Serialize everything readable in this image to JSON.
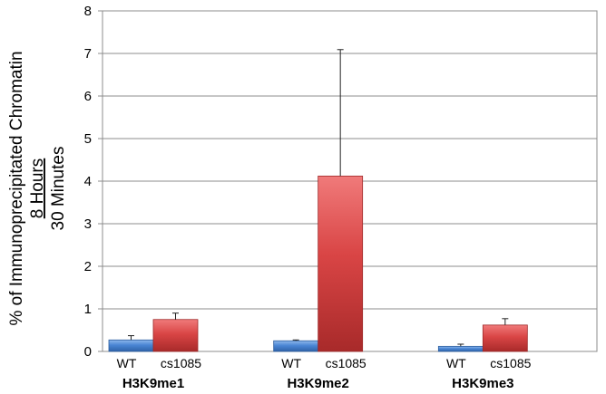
{
  "chart_data": {
    "type": "bar",
    "ylim": [
      0,
      8
    ],
    "yticks": [
      "0",
      "1",
      "2",
      "3",
      "4",
      "5",
      "6",
      "7",
      "8"
    ],
    "ylabel": {
      "line1": "% of Immunoprecipitated Chromatin",
      "line2": "8 Hours",
      "line3": "30 Minutes"
    },
    "grid": true,
    "groups": [
      {
        "name": "H3K9me1",
        "bars": [
          {
            "label": "WT",
            "value": 0.27,
            "error": 0.1,
            "color": "#4a86d4"
          },
          {
            "label": "cs1085",
            "value": 0.75,
            "error": 0.15,
            "color": "#d94545"
          }
        ]
      },
      {
        "name": "H3K9me2",
        "bars": [
          {
            "label": "WT",
            "value": 0.25,
            "error": 0.02,
            "color": "#4a86d4"
          },
          {
            "label": "cs1085",
            "value": 4.12,
            "error": 2.97,
            "color": "#d94545"
          }
        ]
      },
      {
        "name": "H3K9me3",
        "bars": [
          {
            "label": "WT",
            "value": 0.12,
            "error": 0.05,
            "color": "#4a86d4"
          },
          {
            "label": "cs1085",
            "value": 0.62,
            "error": 0.15,
            "color": "#d94545"
          }
        ]
      }
    ]
  }
}
